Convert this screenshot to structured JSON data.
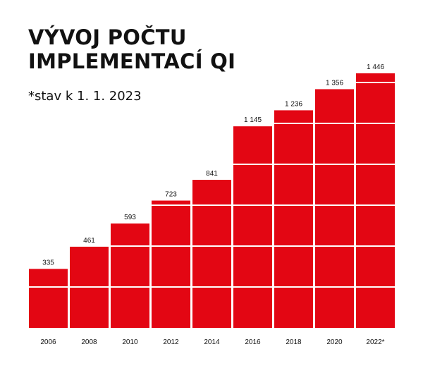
{
  "title_line1": "VÝVOJ POČTU",
  "title_line2": "IMPLEMENTACÍ QI",
  "subtitle": "*stav k 1. 1. 2023",
  "colors": {
    "bar": "#e30613",
    "text": "#111111",
    "background": "#ffffff"
  },
  "chart_data": {
    "type": "bar",
    "title": "VÝVOJ POČTU IMPLEMENTACÍ QI",
    "subtitle": "*stav k 1. 1. 2023",
    "categories": [
      "2006",
      "2008",
      "2010",
      "2012",
      "2014",
      "2016",
      "2018",
      "2020",
      "2022*"
    ],
    "values": [
      335,
      461,
      593,
      723,
      841,
      1145,
      1236,
      1356,
      1446
    ],
    "value_labels": [
      "335",
      "461",
      "593",
      "723",
      "841",
      "1 145",
      "1 236",
      "1 356",
      "1 446"
    ],
    "ylim": [
      0,
      1446
    ],
    "grid": false,
    "legend": "none"
  }
}
